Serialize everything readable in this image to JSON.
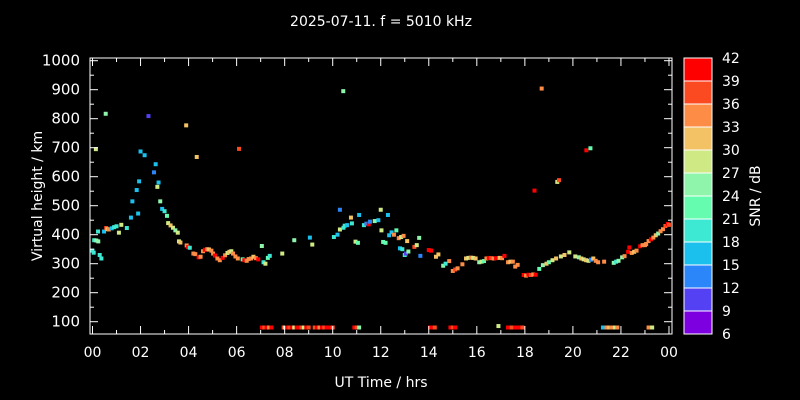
{
  "window": {
    "background": "#000000",
    "foreground": "#ffffff"
  },
  "chart_data": {
    "type": "scatter",
    "title": "2025-07-11. f = 5010 kHz",
    "xlabel": "UT Time / hrs",
    "ylabel": "Virtual height / km",
    "xlim": [
      0,
      24
    ],
    "ylim": [
      57,
      1000
    ],
    "grid": false,
    "legend_position": "right-colorbar",
    "x_tick_labels": [
      "00",
      "02",
      "04",
      "06",
      "08",
      "10",
      "12",
      "14",
      "16",
      "18",
      "20",
      "22",
      "00"
    ],
    "x_tick_hours": [
      0,
      2,
      4,
      6,
      8,
      10,
      12,
      14,
      16,
      18,
      20,
      22,
      24
    ],
    "y_tick_values": [
      100,
      200,
      300,
      400,
      500,
      600,
      700,
      800,
      900,
      1000
    ],
    "colorbar": {
      "label": "SNR / dB",
      "tick_values": [
        6,
        9,
        12,
        15,
        18,
        21,
        24,
        27,
        30,
        33,
        36,
        39,
        42
      ],
      "bin_size_db": 3,
      "colors_low_to_high": [
        "#7d00e0",
        "#5441f4",
        "#2b86fa",
        "#1bc0ed",
        "#3de9d2",
        "#65fcaf",
        "#8ef5ab",
        "#cfe985",
        "#f3c264",
        "#fd8c47",
        "#fb4a21",
        "#fe0000"
      ]
    },
    "points_format": [
      "ut_hours",
      "virtual_height_km",
      "snr_db"
    ],
    "points": [
      [
        0.0,
        345,
        19.5
      ],
      [
        0.05,
        338,
        19.5
      ],
      [
        0.07,
        381,
        19.5
      ],
      [
        0.14,
        695,
        28.5
      ],
      [
        0.16,
        380,
        25.5
      ],
      [
        0.23,
        411,
        19.5
      ],
      [
        0.24,
        377,
        25.5
      ],
      [
        0.3,
        330,
        19.5
      ],
      [
        0.37,
        318,
        19.5
      ],
      [
        0.48,
        411,
        16.5
      ],
      [
        0.55,
        817,
        25.5
      ],
      [
        0.57,
        423,
        37.5
      ],
      [
        0.62,
        419,
        31.5
      ],
      [
        0.68,
        418,
        34.5
      ],
      [
        0.8,
        422,
        16.5
      ],
      [
        0.9,
        426,
        19.5
      ],
      [
        1.0,
        429,
        19.5
      ],
      [
        1.1,
        407,
        28.5
      ],
      [
        1.2,
        434,
        28.5
      ],
      [
        1.43,
        423,
        19.5
      ],
      [
        1.6,
        459,
        16.5
      ],
      [
        1.66,
        515,
        16.5
      ],
      [
        1.84,
        554,
        16.5
      ],
      [
        1.9,
        473,
        16.5
      ],
      [
        1.94,
        584,
        16.5
      ],
      [
        2.0,
        687,
        16.5
      ],
      [
        2.17,
        674,
        16.5
      ],
      [
        2.33,
        809,
        10.5
      ],
      [
        2.56,
        615,
        13.5
      ],
      [
        2.63,
        643,
        16.5
      ],
      [
        2.7,
        565,
        28.5
      ],
      [
        2.75,
        580,
        16.5
      ],
      [
        2.82,
        515,
        25.5
      ],
      [
        2.9,
        489,
        16.5
      ],
      [
        3.0,
        481,
        19.5
      ],
      [
        3.1,
        465,
        22.5
      ],
      [
        3.15,
        440,
        28.5
      ],
      [
        3.25,
        432,
        31.5
      ],
      [
        3.35,
        424,
        28.5
      ],
      [
        3.45,
        415,
        25.5
      ],
      [
        3.55,
        407,
        28.5
      ],
      [
        3.6,
        377,
        28.5
      ],
      [
        3.66,
        373,
        31.5
      ],
      [
        3.9,
        777,
        31.5
      ],
      [
        3.92,
        363,
        34.5
      ],
      [
        3.98,
        357,
        40.5
      ],
      [
        4.05,
        355,
        19.5
      ],
      [
        4.2,
        335,
        34.5
      ],
      [
        4.28,
        333,
        34.5
      ],
      [
        4.34,
        668,
        31.5
      ],
      [
        4.42,
        322,
        40.5
      ],
      [
        4.5,
        324,
        34.5
      ],
      [
        4.6,
        343,
        34.5
      ],
      [
        4.68,
        348,
        40.5
      ],
      [
        4.78,
        350,
        34.5
      ],
      [
        4.85,
        349,
        31.5
      ],
      [
        4.95,
        345,
        34.5
      ],
      [
        5.02,
        335,
        34.5
      ],
      [
        5.1,
        328,
        40.5
      ],
      [
        5.2,
        318,
        34.5
      ],
      [
        5.3,
        312,
        34.5
      ],
      [
        5.42,
        320,
        40.5
      ],
      [
        5.52,
        329,
        34.5
      ],
      [
        5.62,
        337,
        28.5
      ],
      [
        5.7,
        341,
        31.5
      ],
      [
        5.78,
        343,
        28.5
      ],
      [
        5.85,
        335,
        34.5
      ],
      [
        5.95,
        325,
        34.5
      ],
      [
        6.05,
        318,
        34.5
      ],
      [
        6.1,
        696,
        37.5
      ],
      [
        6.25,
        315,
        22.5
      ],
      [
        6.32,
        312,
        40.5
      ],
      [
        6.42,
        310,
        34.5
      ],
      [
        6.5,
        316,
        34.5
      ],
      [
        6.6,
        318,
        34.5
      ],
      [
        6.7,
        324,
        31.5
      ],
      [
        6.8,
        319,
        34.5
      ],
      [
        6.9,
        315,
        40.5
      ],
      [
        7.05,
        361,
        25.5
      ],
      [
        7.12,
        305,
        19.5
      ],
      [
        7.2,
        300,
        28.5
      ],
      [
        7.3,
        320,
        22.5
      ],
      [
        7.38,
        327,
        19.5
      ],
      [
        7.9,
        335,
        28.5
      ],
      [
        8.4,
        381,
        25.5
      ],
      [
        9.05,
        390,
        16.5
      ],
      [
        9.15,
        366,
        28.5
      ],
      [
        10.05,
        392,
        19.5
      ],
      [
        10.2,
        400,
        16.5
      ],
      [
        10.3,
        418,
        28.5
      ],
      [
        10.3,
        486,
        13.5
      ],
      [
        10.44,
        895,
        25.5
      ],
      [
        10.45,
        424,
        19.5
      ],
      [
        10.5,
        431,
        19.5
      ],
      [
        10.6,
        433,
        16.5
      ],
      [
        10.76,
        459,
        31.5
      ],
      [
        10.8,
        439,
        19.5
      ],
      [
        10.95,
        376,
        28.5
      ],
      [
        11.05,
        372,
        22.5
      ],
      [
        11.1,
        468,
        16.5
      ],
      [
        11.3,
        433,
        19.5
      ],
      [
        11.4,
        438,
        13.5
      ],
      [
        11.5,
        436,
        40.5
      ],
      [
        11.55,
        445,
        13.5
      ],
      [
        11.75,
        447,
        25.5
      ],
      [
        11.9,
        450,
        16.5
      ],
      [
        12.0,
        486,
        28.5
      ],
      [
        12.03,
        415,
        28.5
      ],
      [
        12.1,
        375,
        22.5
      ],
      [
        12.2,
        372,
        22.5
      ],
      [
        12.3,
        468,
        16.5
      ],
      [
        12.35,
        398,
        16.5
      ],
      [
        12.45,
        408,
        16.5
      ],
      [
        12.55,
        400,
        34.5
      ],
      [
        12.65,
        415,
        22.5
      ],
      [
        12.75,
        388,
        34.5
      ],
      [
        12.8,
        353,
        16.5
      ],
      [
        12.85,
        392,
        28.5
      ],
      [
        12.9,
        350,
        19.5
      ],
      [
        12.95,
        396,
        34.5
      ],
      [
        13.0,
        330,
        19.5
      ],
      [
        13.05,
        335,
        10.5
      ],
      [
        13.1,
        378,
        31.5
      ],
      [
        13.15,
        342,
        25.5
      ],
      [
        13.4,
        358,
        37.5
      ],
      [
        13.5,
        364,
        28.5
      ],
      [
        13.6,
        389,
        25.5
      ],
      [
        13.65,
        327,
        13.5
      ],
      [
        14.0,
        347,
        40.5
      ],
      [
        14.1,
        345,
        40.5
      ],
      [
        14.3,
        324,
        31.5
      ],
      [
        14.4,
        332,
        31.5
      ],
      [
        14.6,
        293,
        25.5
      ],
      [
        14.7,
        300,
        19.5
      ],
      [
        14.85,
        309,
        34.5
      ],
      [
        15.0,
        275,
        34.5
      ],
      [
        15.1,
        280,
        37.5
      ],
      [
        15.2,
        284,
        34.5
      ],
      [
        15.4,
        298,
        34.5
      ],
      [
        15.55,
        318,
        31.5
      ],
      [
        15.65,
        320,
        28.5
      ],
      [
        15.75,
        321,
        34.5
      ],
      [
        15.85,
        320,
        28.5
      ],
      [
        15.95,
        318,
        31.5
      ],
      [
        16.1,
        305,
        25.5
      ],
      [
        16.2,
        307,
        28.5
      ],
      [
        16.3,
        309,
        22.5
      ],
      [
        16.4,
        318,
        34.5
      ],
      [
        16.5,
        320,
        40.5
      ],
      [
        16.6,
        319,
        37.5
      ],
      [
        16.7,
        318,
        34.5
      ],
      [
        16.8,
        319,
        40.5
      ],
      [
        16.95,
        320,
        31.5
      ],
      [
        17.05,
        319,
        34.5
      ],
      [
        17.15,
        327,
        40.5
      ],
      [
        17.3,
        305,
        34.5
      ],
      [
        17.4,
        307,
        31.5
      ],
      [
        17.5,
        307,
        34.5
      ],
      [
        17.6,
        290,
        34.5
      ],
      [
        17.7,
        296,
        34.5
      ],
      [
        17.95,
        261,
        40.5
      ],
      [
        18.05,
        259,
        34.5
      ],
      [
        18.15,
        262,
        40.5
      ],
      [
        18.25,
        261,
        37.5
      ],
      [
        18.35,
        263,
        34.5
      ],
      [
        18.4,
        552,
        40.5
      ],
      [
        18.45,
        262,
        40.5
      ],
      [
        18.6,
        282,
        22.5
      ],
      [
        18.7,
        904,
        34.5
      ],
      [
        18.75,
        295,
        25.5
      ],
      [
        18.9,
        300,
        31.5
      ],
      [
        19.0,
        305,
        22.5
      ],
      [
        19.15,
        312,
        28.5
      ],
      [
        19.3,
        318,
        31.5
      ],
      [
        19.35,
        582,
        28.5
      ],
      [
        19.42,
        588,
        37.5
      ],
      [
        19.5,
        325,
        28.5
      ],
      [
        19.65,
        330,
        31.5
      ],
      [
        19.85,
        339,
        28.5
      ],
      [
        20.1,
        325,
        28.5
      ],
      [
        20.25,
        322,
        25.5
      ],
      [
        20.35,
        318,
        31.5
      ],
      [
        20.45,
        315,
        28.5
      ],
      [
        20.55,
        312,
        31.5
      ],
      [
        20.56,
        691,
        40.5
      ],
      [
        20.65,
        310,
        28.5
      ],
      [
        20.73,
        698,
        22.5
      ],
      [
        20.75,
        314,
        13.5
      ],
      [
        20.85,
        318,
        31.5
      ],
      [
        20.95,
        310,
        34.5
      ],
      [
        21.05,
        305,
        34.5
      ],
      [
        21.3,
        307,
        34.5
      ],
      [
        21.7,
        303,
        25.5
      ],
      [
        21.8,
        307,
        19.5
      ],
      [
        21.9,
        310,
        25.5
      ],
      [
        22.05,
        322,
        25.5
      ],
      [
        22.15,
        326,
        34.5
      ],
      [
        22.3,
        341,
        40.5
      ],
      [
        22.35,
        356,
        40.5
      ],
      [
        22.45,
        337,
        34.5
      ],
      [
        22.55,
        341,
        31.5
      ],
      [
        22.65,
        345,
        34.5
      ],
      [
        22.8,
        360,
        40.5
      ],
      [
        22.9,
        364,
        34.5
      ],
      [
        23.0,
        364,
        34.5
      ],
      [
        23.05,
        368,
        34.5
      ],
      [
        23.15,
        378,
        34.5
      ],
      [
        23.25,
        384,
        40.5
      ],
      [
        23.35,
        390,
        34.5
      ],
      [
        23.45,
        398,
        31.5
      ],
      [
        23.55,
        404,
        25.5
      ],
      [
        23.65,
        412,
        34.5
      ],
      [
        23.75,
        419,
        34.5
      ],
      [
        23.85,
        430,
        37.5
      ],
      [
        23.95,
        437,
        40.5
      ],
      [
        24.0,
        434,
        37.5
      ],
      [
        7.05,
        80,
        40.5
      ],
      [
        7.15,
        80,
        37.5
      ],
      [
        7.25,
        80,
        40.5
      ],
      [
        7.35,
        80,
        34.5
      ],
      [
        7.45,
        80,
        40.5
      ],
      [
        7.95,
        80,
        40.5
      ],
      [
        8.0,
        80,
        28.5
      ],
      [
        8.1,
        80,
        40.5
      ],
      [
        8.2,
        80,
        37.5
      ],
      [
        8.3,
        80,
        40.5
      ],
      [
        8.4,
        80,
        28.5
      ],
      [
        8.5,
        80,
        40.5
      ],
      [
        8.6,
        80,
        40.5
      ],
      [
        8.7,
        80,
        37.5
      ],
      [
        8.8,
        80,
        28.5
      ],
      [
        8.9,
        80,
        40.5
      ],
      [
        9.0,
        80,
        37.5
      ],
      [
        9.25,
        80,
        37.5
      ],
      [
        9.35,
        80,
        40.5
      ],
      [
        9.45,
        80,
        34.5
      ],
      [
        9.55,
        80,
        40.5
      ],
      [
        9.65,
        80,
        37.5
      ],
      [
        9.75,
        80,
        40.5
      ],
      [
        9.9,
        80,
        40.5
      ],
      [
        10.0,
        80,
        37.5
      ],
      [
        10.9,
        80,
        40.5
      ],
      [
        11.0,
        80,
        37.5
      ],
      [
        11.1,
        80,
        25.5
      ],
      [
        14.05,
        80,
        40.5
      ],
      [
        14.15,
        80,
        40.5
      ],
      [
        14.25,
        80,
        37.5
      ],
      [
        14.9,
        80,
        40.5
      ],
      [
        15.0,
        80,
        37.5
      ],
      [
        15.1,
        80,
        40.5
      ],
      [
        16.9,
        85,
        28.5
      ],
      [
        17.3,
        80,
        40.5
      ],
      [
        17.45,
        80,
        37.5
      ],
      [
        17.6,
        80,
        40.5
      ],
      [
        17.75,
        80,
        40.5
      ],
      [
        17.9,
        80,
        37.5
      ],
      [
        21.25,
        80,
        16.5
      ],
      [
        21.4,
        80,
        34.5
      ],
      [
        21.5,
        80,
        31.5
      ],
      [
        21.6,
        80,
        34.5
      ],
      [
        21.75,
        80,
        28.5
      ],
      [
        21.85,
        80,
        34.5
      ],
      [
        23.15,
        80,
        34.5
      ],
      [
        23.3,
        80,
        28.5
      ]
    ]
  }
}
